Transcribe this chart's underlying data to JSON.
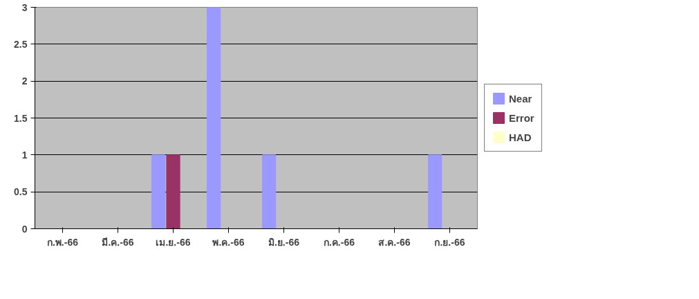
{
  "chart_data": {
    "type": "bar",
    "categories": [
      "ก.พ.-66",
      "มี.ค.-66",
      "เม.ย.-66",
      "พ.ค.-66",
      "มิ.ย.-66",
      "ก.ค.-66",
      "ส.ค.-66",
      "ก.ย.-66"
    ],
    "series": [
      {
        "name": "Near",
        "color": "#9999ff",
        "values": [
          0,
          0,
          1,
          3,
          1,
          0,
          0,
          1
        ]
      },
      {
        "name": "Error",
        "color": "#993366",
        "values": [
          0,
          0,
          1,
          0,
          0,
          0,
          0,
          0
        ]
      },
      {
        "name": "HAD",
        "color": "#ffffcc",
        "values": [
          0,
          0,
          0,
          0,
          0,
          0,
          0,
          0
        ]
      }
    ],
    "ylim": [
      0,
      3
    ],
    "yticks": [
      0,
      0.5,
      1,
      1.5,
      2,
      2.5,
      3
    ],
    "grid": "y",
    "legend": "right"
  }
}
